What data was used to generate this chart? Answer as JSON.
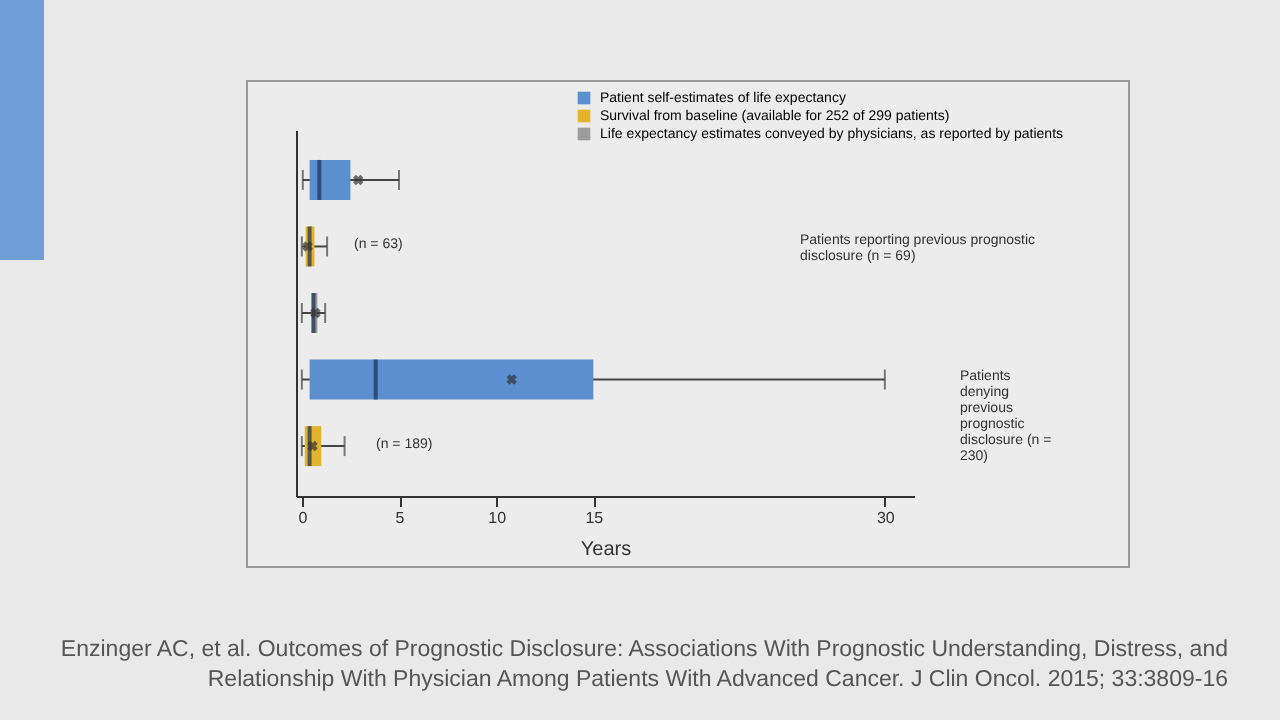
{
  "chart_data": {
    "type": "box",
    "orientation": "horizontal",
    "categories": [
      null,
      null,
      null,
      null,
      null
    ],
    "series": [
      {
        "name": "Patient self-estimates of life expectancy",
        "color": "#5b8fcf",
        "boxes": [
          {
            "low": 0.05,
            "q1": 0.4,
            "median": 0.9,
            "q3": 2.5,
            "high": 5,
            "mean": 2.9
          },
          null,
          null,
          {
            "low": 0,
            "q1": 0.4,
            "median": 3.8,
            "q3": 15,
            "high": 30,
            "mean": 10.8
          },
          null
        ]
      },
      {
        "name": "Survival from baseline (available for 252 of 299 patients)",
        "color": "#e2b42c",
        "boxes": [
          null,
          {
            "low": 0,
            "q1": 0.2,
            "median": 0.4,
            "q3": 0.65,
            "high": 1.3,
            "mean": 0.3
          },
          null,
          null,
          {
            "low": 0,
            "q1": 0.15,
            "median": 0.4,
            "q3": 1,
            "high": 2.2,
            "mean": 0.55
          }
        ]
      },
      {
        "name": "Life expectancy estimates conveyed by physicians, as reported by patients",
        "color": "#9c9c9c",
        "boxes": [
          null,
          null,
          {
            "low": 0,
            "q1": 0.5,
            "median": 0.6,
            "q3": 0.8,
            "high": 1.2,
            "mean": 0.7
          },
          null,
          null
        ]
      }
    ],
    "xlabel": "Years",
    "xlim": [
      -0.3,
      31.5
    ],
    "xticks": [
      0,
      5,
      10,
      15,
      30
    ],
    "tick_labels": "x",
    "legend": "top right",
    "annotations": [
      "(n = 63)",
      "(n = 189)",
      "Patients reporting previous prognostic disclosure (n = 69)",
      "Patients denying previous prognostic disclosure (n = 230)",
      "Enzinger AC, et al. Outcomes of Prognostic Disclosure: Associations With Prognostic Understanding, Distress, and Relationship With Physician Among Patients With Advanced Cancer. J Clin Oncol. 2015; 33:3809-16"
    ]
  }
}
